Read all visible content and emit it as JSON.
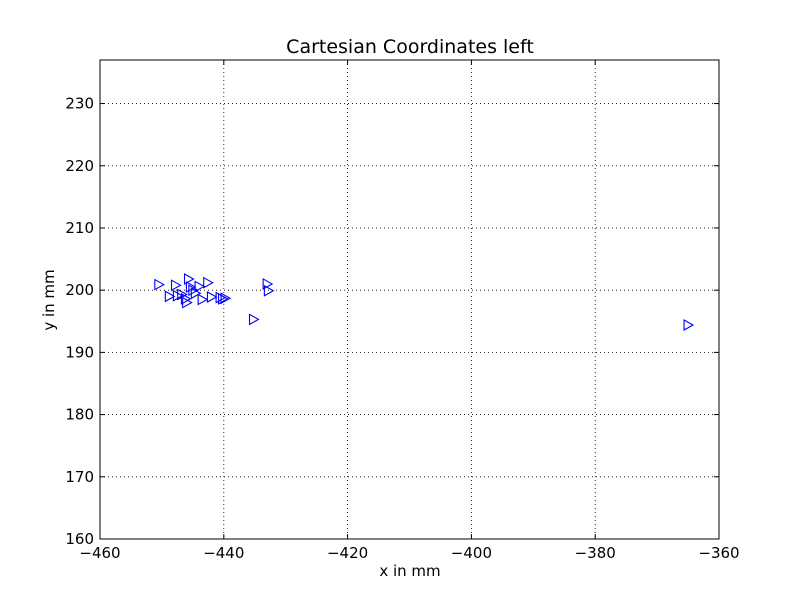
{
  "chart_data": {
    "type": "scatter",
    "title": "Cartesian Coordinates left",
    "xlabel": "x in mm",
    "ylabel": "y in mm",
    "xlim": [
      -460,
      -360
    ],
    "ylim": [
      160,
      237
    ],
    "xticks": [
      -460,
      -440,
      -420,
      -400,
      -380,
      -360
    ],
    "yticks": [
      160,
      170,
      180,
      190,
      200,
      210,
      220,
      230
    ],
    "xtick_labels": [
      "−460",
      "−440",
      "−420",
      "−400",
      "−380",
      "−360"
    ],
    "ytick_labels": [
      "160",
      "170",
      "180",
      "190",
      "200",
      "210",
      "220",
      "230"
    ],
    "grid": true,
    "marker": "triangle-right",
    "marker_color": "#0000ff",
    "series": [
      {
        "points": [
          [
            -450.5,
            200.9
          ],
          [
            -447.8,
            200.8
          ],
          [
            -448.8,
            199.0
          ],
          [
            -447.5,
            199.1
          ],
          [
            -446.8,
            199.3
          ],
          [
            -446.2,
            198.6
          ],
          [
            -446.0,
            198.0
          ],
          [
            -445.7,
            201.8
          ],
          [
            -445.4,
            200.5
          ],
          [
            -445.0,
            200.0
          ],
          [
            -444.6,
            199.5
          ],
          [
            -444.0,
            200.6
          ],
          [
            -443.5,
            198.5
          ],
          [
            -442.6,
            201.2
          ],
          [
            -442.0,
            198.9
          ],
          [
            -440.6,
            198.8
          ],
          [
            -440.2,
            198.6
          ],
          [
            -439.8,
            198.7
          ],
          [
            -435.2,
            195.3
          ],
          [
            -433.0,
            201.0
          ],
          [
            -432.8,
            199.9
          ],
          [
            -365.0,
            194.4
          ]
        ]
      }
    ]
  }
}
